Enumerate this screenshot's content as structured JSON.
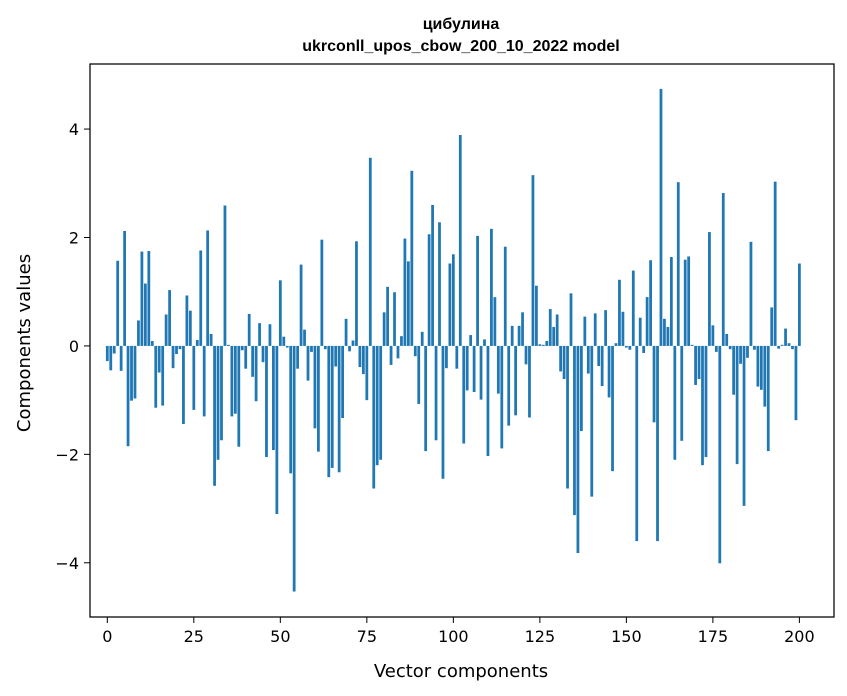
{
  "chart_data": {
    "type": "bar",
    "title": "цибулина",
    "subtitle": "ukrconll_upos_cbow_200_10_2022 model",
    "xlabel": "Vector components",
    "ylabel": "Components values",
    "xlim": [
      -5,
      210
    ],
    "ylim": [
      -5.0,
      5.2
    ],
    "xticks": [
      0,
      25,
      50,
      75,
      100,
      125,
      150,
      175,
      200
    ],
    "yticks": [
      -4,
      -2,
      0,
      2,
      4
    ],
    "ytick_labels": [
      "−4",
      "−2",
      "0",
      "2",
      "4"
    ],
    "bar_color": "#1f77b4",
    "values": [
      -0.28,
      -0.45,
      -0.14,
      1.57,
      -0.46,
      2.12,
      -1.85,
      -1.01,
      -0.97,
      0.47,
      1.74,
      1.15,
      1.75,
      0.09,
      -1.14,
      -0.49,
      -1.1,
      0.58,
      1.03,
      -0.41,
      -0.15,
      -0.06,
      -1.44,
      0.93,
      0.65,
      -1.18,
      0.11,
      1.76,
      -1.3,
      2.13,
      0.22,
      -2.58,
      -2.1,
      -1.74,
      2.59,
      0.02,
      -1.3,
      -1.25,
      -1.86,
      -0.08,
      -0.42,
      0.59,
      -0.57,
      -1.02,
      0.42,
      -0.3,
      -2.05,
      0.4,
      -1.92,
      -3.1,
      1.21,
      0.17,
      -0.03,
      -2.35,
      -4.53,
      -0.42,
      1.5,
      0.3,
      -0.64,
      -0.11,
      -1.52,
      -1.95,
      1.96,
      -0.06,
      -2.42,
      -2.25,
      -0.38,
      -2.33,
      -1.33,
      0.5,
      -0.1,
      0.1,
      1.93,
      -0.39,
      -0.52,
      -1.0,
      3.47,
      -2.63,
      -2.2,
      -2.1,
      0.62,
      1.09,
      -0.35,
      0.99,
      -0.23,
      0.18,
      1.98,
      1.56,
      3.23,
      -0.19,
      -1.07,
      0.26,
      -1.94,
      2.06,
      2.6,
      -1.74,
      2.28,
      -2.45,
      -0.41,
      1.52,
      1.69,
      -0.42,
      3.89,
      -1.8,
      -0.82,
      0.2,
      -0.85,
      2.03,
      -0.99,
      0.12,
      -2.03,
      2.16,
      0.9,
      -0.88,
      -1.89,
      1.83,
      -1.47,
      0.37,
      -1.28,
      0.37,
      0.62,
      -0.34,
      -1.32,
      3.15,
      1.11,
      0.03,
      0.02,
      0.09,
      0.68,
      0.35,
      0.58,
      -0.47,
      -0.61,
      -2.63,
      0.97,
      -3.12,
      -3.82,
      -1.57,
      0.54,
      -0.51,
      -2.78,
      0.6,
      -0.37,
      -0.74,
      0.66,
      -0.95,
      -2.31,
      0.05,
      1.22,
      0.63,
      -0.03,
      -0.07,
      1.39,
      -3.6,
      0.52,
      -0.13,
      0.9,
      1.58,
      -1.41,
      -3.6,
      4.74,
      0.5,
      0.35,
      1.64,
      -2.1,
      3.02,
      -1.75,
      1.59,
      1.65,
      0.02,
      -0.72,
      -0.61,
      -2.2,
      -2.05,
      2.1,
      0.38,
      -0.11,
      -4.01,
      2.82,
      0.22,
      -0.06,
      -0.9,
      -2.18,
      -0.33,
      -2.95,
      -0.22,
      1.92,
      -0.07,
      -0.75,
      -0.81,
      -1.12,
      -1.94,
      0.71,
      3.03,
      -0.05,
      0.02,
      0.32,
      0.05,
      -0.06,
      -1.37,
      1.52
    ]
  }
}
